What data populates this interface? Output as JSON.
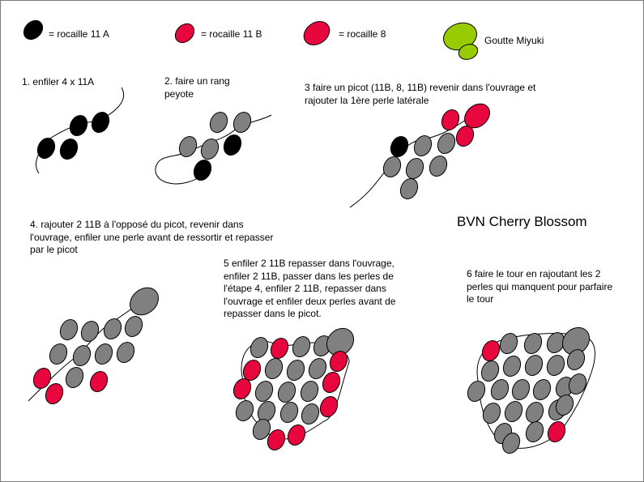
{
  "legend": [
    {
      "label": "= rocaille 11 A",
      "color": "#000000"
    },
    {
      "label": "= rocaille 11 B",
      "color": "#e8063f"
    },
    {
      "label": "= rocaille 8",
      "color": "#e8063f"
    },
    {
      "label": "Goutte Miyuki",
      "color": "#99cc00"
    }
  ],
  "steps": [
    "1. enfiler 4 x 11A",
    "2. faire un rang\npeyote",
    "3 faire un picot (11B, 8, 11B) revenir dans l'ouvrage et\nrajouter la 1ère perle latérale",
    "4. rajouter 2 11B à l'opposé du picot, revenir dans\nl'ouvrage, enfiler une perle avant de ressortir et repasser\npar le picot",
    "5 enfiler 2 11B repasser dans l'ouvrage,\nenfiler 2 11B, passer dans les perles de\nl'étape 4, enfiler 2 11B, repasser dans\nl'ouvrage et enfiler deux perles avant de\nrepasser dans le picot.",
    "6 faire le tour en rajoutant les 2\nperles qui manquent pour parfaire\nle tour"
  ],
  "title": "BVN Cherry Blossom",
  "colors": {
    "black_bead": "#000000",
    "pink_bead": "#e8063f",
    "gray_bead": "#808080",
    "green_drop": "#99cc00",
    "outline": "#000000",
    "thread": "#000000",
    "frame": "#7a7a7a"
  }
}
